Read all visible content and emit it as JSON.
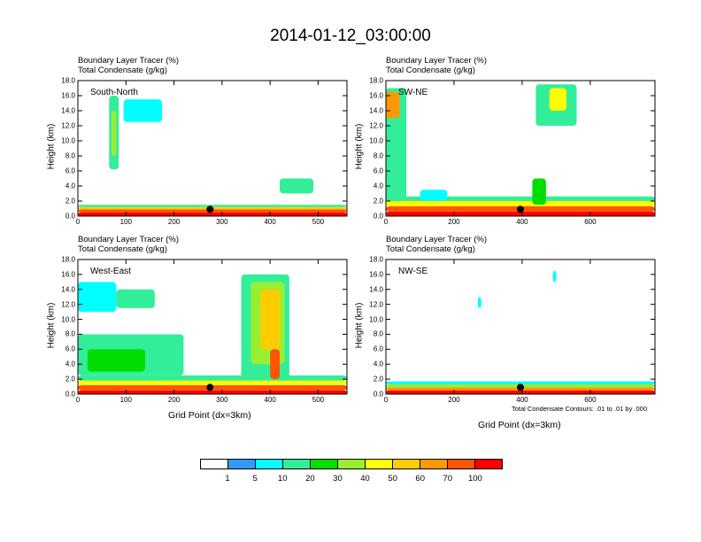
{
  "title": "2014-01-12_03:00:00",
  "line1": "Boundary Layer Tracer   (%)",
  "line2": "Total Condensate   (g/kg)",
  "ylabel": "Height (km)",
  "xlabel": "Grid Point (dx=3km)",
  "contour_note": "Total Condensate Contours: .01 to .01 by .000",
  "yticks": [
    "0.0",
    "2.0",
    "4.0",
    "6.0",
    "8.0",
    "10.0",
    "12.0",
    "14.0",
    "16.0",
    "18.0"
  ],
  "colors": {
    "levels": [
      "#ffffff",
      "#3399ff",
      "#00ffff",
      "#33ee99",
      "#00dd00",
      "#99ee33",
      "#ffff00",
      "#ffcc00",
      "#ff9900",
      "#ff5500",
      "#ff0000"
    ]
  },
  "colorbar_labels": [
    "1",
    "5",
    "10",
    "20",
    "30",
    "40",
    "50",
    "60",
    "70",
    "100"
  ],
  "chart_data": [
    {
      "type": "heatmap",
      "label": "South-North",
      "x_ticks": [
        0,
        100,
        200,
        300,
        400,
        500
      ],
      "xlim": [
        0,
        560
      ],
      "ylim": [
        0,
        18
      ],
      "marker": {
        "x": 275,
        "y": 0.9
      },
      "features": [
        {
          "x": 0,
          "w": 560,
          "y0": 0,
          "y1": 0.5,
          "level": 10
        },
        {
          "x": 0,
          "w": 560,
          "y0": 0.5,
          "y1": 0.9,
          "level": 9
        },
        {
          "x": 0,
          "w": 560,
          "y0": 0.9,
          "y1": 1.2,
          "level": 7
        },
        {
          "x": 0,
          "w": 560,
          "y0": 1.2,
          "y1": 1.5,
          "level": 3
        },
        {
          "x": 65,
          "w": 20,
          "y0": 6.2,
          "y1": 16,
          "level": 3
        },
        {
          "x": 70,
          "w": 10,
          "y0": 8,
          "y1": 14,
          "level": 5
        },
        {
          "x": 95,
          "w": 80,
          "y0": 12.5,
          "y1": 15.5,
          "level": 2
        },
        {
          "x": 420,
          "w": 70,
          "y0": 3,
          "y1": 5,
          "level": 3
        }
      ]
    },
    {
      "type": "heatmap",
      "label": "SW-NE",
      "x_ticks": [
        0,
        200,
        400,
        600
      ],
      "xlim": [
        0,
        790
      ],
      "ylim": [
        0,
        18
      ],
      "marker": {
        "x": 395,
        "y": 0.9
      },
      "features": [
        {
          "x": 0,
          "w": 790,
          "y0": 0,
          "y1": 0.6,
          "level": 10
        },
        {
          "x": 0,
          "w": 790,
          "y0": 0.6,
          "y1": 1.3,
          "level": 9
        },
        {
          "x": 0,
          "w": 790,
          "y0": 1.3,
          "y1": 2,
          "level": 6
        },
        {
          "x": 0,
          "w": 790,
          "y0": 2,
          "y1": 2.6,
          "level": 3
        },
        {
          "x": 0,
          "w": 60,
          "y0": 2,
          "y1": 17,
          "level": 3
        },
        {
          "x": 0,
          "w": 40,
          "y0": 13,
          "y1": 16.5,
          "level": 8
        },
        {
          "x": 440,
          "w": 120,
          "y0": 12,
          "y1": 17.5,
          "level": 3
        },
        {
          "x": 480,
          "w": 50,
          "y0": 14,
          "y1": 17,
          "level": 6
        },
        {
          "x": 430,
          "w": 40,
          "y0": 1.5,
          "y1": 5,
          "level": 4
        },
        {
          "x": 100,
          "w": 80,
          "y0": 2,
          "y1": 3.5,
          "level": 2
        }
      ]
    },
    {
      "type": "heatmap",
      "label": "West-East",
      "x_ticks": [
        0,
        100,
        200,
        300,
        400,
        500
      ],
      "xlim": [
        0,
        560
      ],
      "ylim": [
        0,
        18
      ],
      "marker": {
        "x": 275,
        "y": 0.9
      },
      "features": [
        {
          "x": 0,
          "w": 560,
          "y0": 0,
          "y1": 0.5,
          "level": 10
        },
        {
          "x": 0,
          "w": 560,
          "y0": 0.5,
          "y1": 1.2,
          "level": 9
        },
        {
          "x": 0,
          "w": 560,
          "y0": 1.2,
          "y1": 1.8,
          "level": 6
        },
        {
          "x": 0,
          "w": 560,
          "y0": 1.8,
          "y1": 2.5,
          "level": 3
        },
        {
          "x": 0,
          "w": 80,
          "y0": 11,
          "y1": 15,
          "level": 2
        },
        {
          "x": 80,
          "w": 80,
          "y0": 11.5,
          "y1": 14,
          "level": 3
        },
        {
          "x": 0,
          "w": 220,
          "y0": 2.5,
          "y1": 8,
          "level": 3
        },
        {
          "x": 20,
          "w": 120,
          "y0": 3,
          "y1": 6,
          "level": 4
        },
        {
          "x": 340,
          "w": 100,
          "y0": 2,
          "y1": 16,
          "level": 3
        },
        {
          "x": 360,
          "w": 70,
          "y0": 4,
          "y1": 15,
          "level": 5
        },
        {
          "x": 380,
          "w": 40,
          "y0": 6,
          "y1": 14,
          "level": 7
        },
        {
          "x": 400,
          "w": 20,
          "y0": 2,
          "y1": 6,
          "level": 9
        }
      ]
    },
    {
      "type": "heatmap",
      "label": "NW-SE",
      "x_ticks": [
        0,
        200,
        400,
        600
      ],
      "xlim": [
        0,
        790
      ],
      "ylim": [
        0,
        18
      ],
      "marker": {
        "x": 395,
        "y": 0.9
      },
      "features": [
        {
          "x": 0,
          "w": 790,
          "y0": 0,
          "y1": 0.5,
          "level": 10
        },
        {
          "x": 0,
          "w": 790,
          "y0": 0.5,
          "y1": 0.9,
          "level": 8
        },
        {
          "x": 0,
          "w": 790,
          "y0": 0.9,
          "y1": 1.3,
          "level": 5
        },
        {
          "x": 0,
          "w": 790,
          "y0": 1.3,
          "y1": 1.7,
          "level": 2
        },
        {
          "x": 270,
          "w": 10,
          "y0": 11.5,
          "y1": 13,
          "level": 2
        },
        {
          "x": 490,
          "w": 10,
          "y0": 15,
          "y1": 16.5,
          "level": 2
        }
      ]
    }
  ]
}
